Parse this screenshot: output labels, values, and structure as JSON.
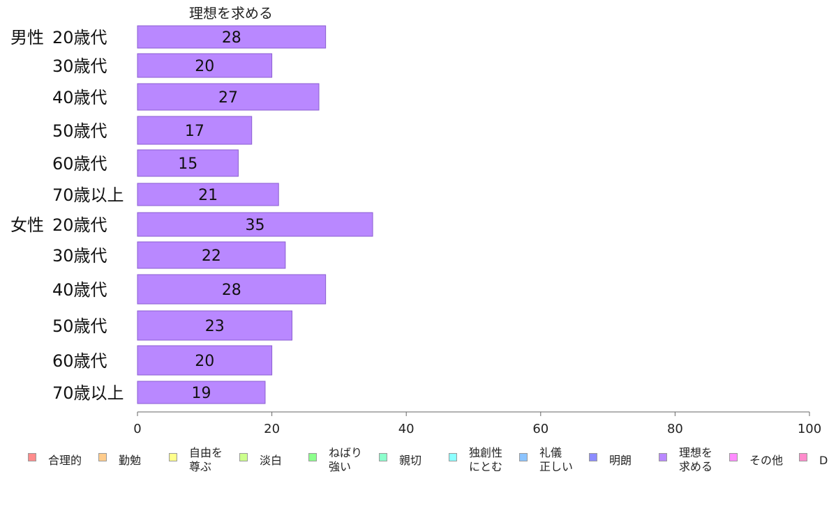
{
  "chart_data": {
    "type": "bar",
    "orientation": "horizontal",
    "title": "理想を求める",
    "xlim": [
      0,
      100
    ],
    "xticks": [
      0,
      20,
      40,
      60,
      80,
      100
    ],
    "bar_color": "#b988ff",
    "rows": [
      {
        "group": "男性",
        "label": "20歳代",
        "value": 28
      },
      {
        "group": "",
        "label": "30歳代",
        "value": 20
      },
      {
        "group": "",
        "label": "40歳代",
        "value": 27
      },
      {
        "group": "",
        "label": "50歳代",
        "value": 17
      },
      {
        "group": "",
        "label": "60歳代",
        "value": 15
      },
      {
        "group": "",
        "label": "70歳以上",
        "value": 21
      },
      {
        "group": "女性",
        "label": "20歳代",
        "value": 35
      },
      {
        "group": "",
        "label": "30歳代",
        "value": 22
      },
      {
        "group": "",
        "label": "40歳代",
        "value": 28
      },
      {
        "group": "",
        "label": "50歳代",
        "value": 23
      },
      {
        "group": "",
        "label": "60歳代",
        "value": 20
      },
      {
        "group": "",
        "label": "70歳以上",
        "value": 19
      }
    ],
    "legend": [
      {
        "lines": [
          "合理的"
        ],
        "color": "#ff8c8c"
      },
      {
        "lines": [
          "勤勉"
        ],
        "color": "#ffcc8c"
      },
      {
        "lines": [
          "自由を",
          "尊ぶ"
        ],
        "color": "#ffff8c"
      },
      {
        "lines": [
          "淡白"
        ],
        "color": "#ccff8c"
      },
      {
        "lines": [
          "ねばり",
          "強い"
        ],
        "color": "#8cff8c"
      },
      {
        "lines": [
          "親切"
        ],
        "color": "#8cffcc"
      },
      {
        "lines": [
          "独創性",
          "にとむ"
        ],
        "color": "#8cffff"
      },
      {
        "lines": [
          "礼儀",
          "正しい"
        ],
        "color": "#8cc4ff"
      },
      {
        "lines": [
          "明朗"
        ],
        "color": "#8c8cff"
      },
      {
        "lines": [
          "理想を",
          "求める"
        ],
        "color": "#b988ff"
      },
      {
        "lines": [
          "その他"
        ],
        "color": "#ff8cff"
      },
      {
        "lines": [
          "D"
        ],
        "color": "#ff8ccc"
      }
    ]
  }
}
